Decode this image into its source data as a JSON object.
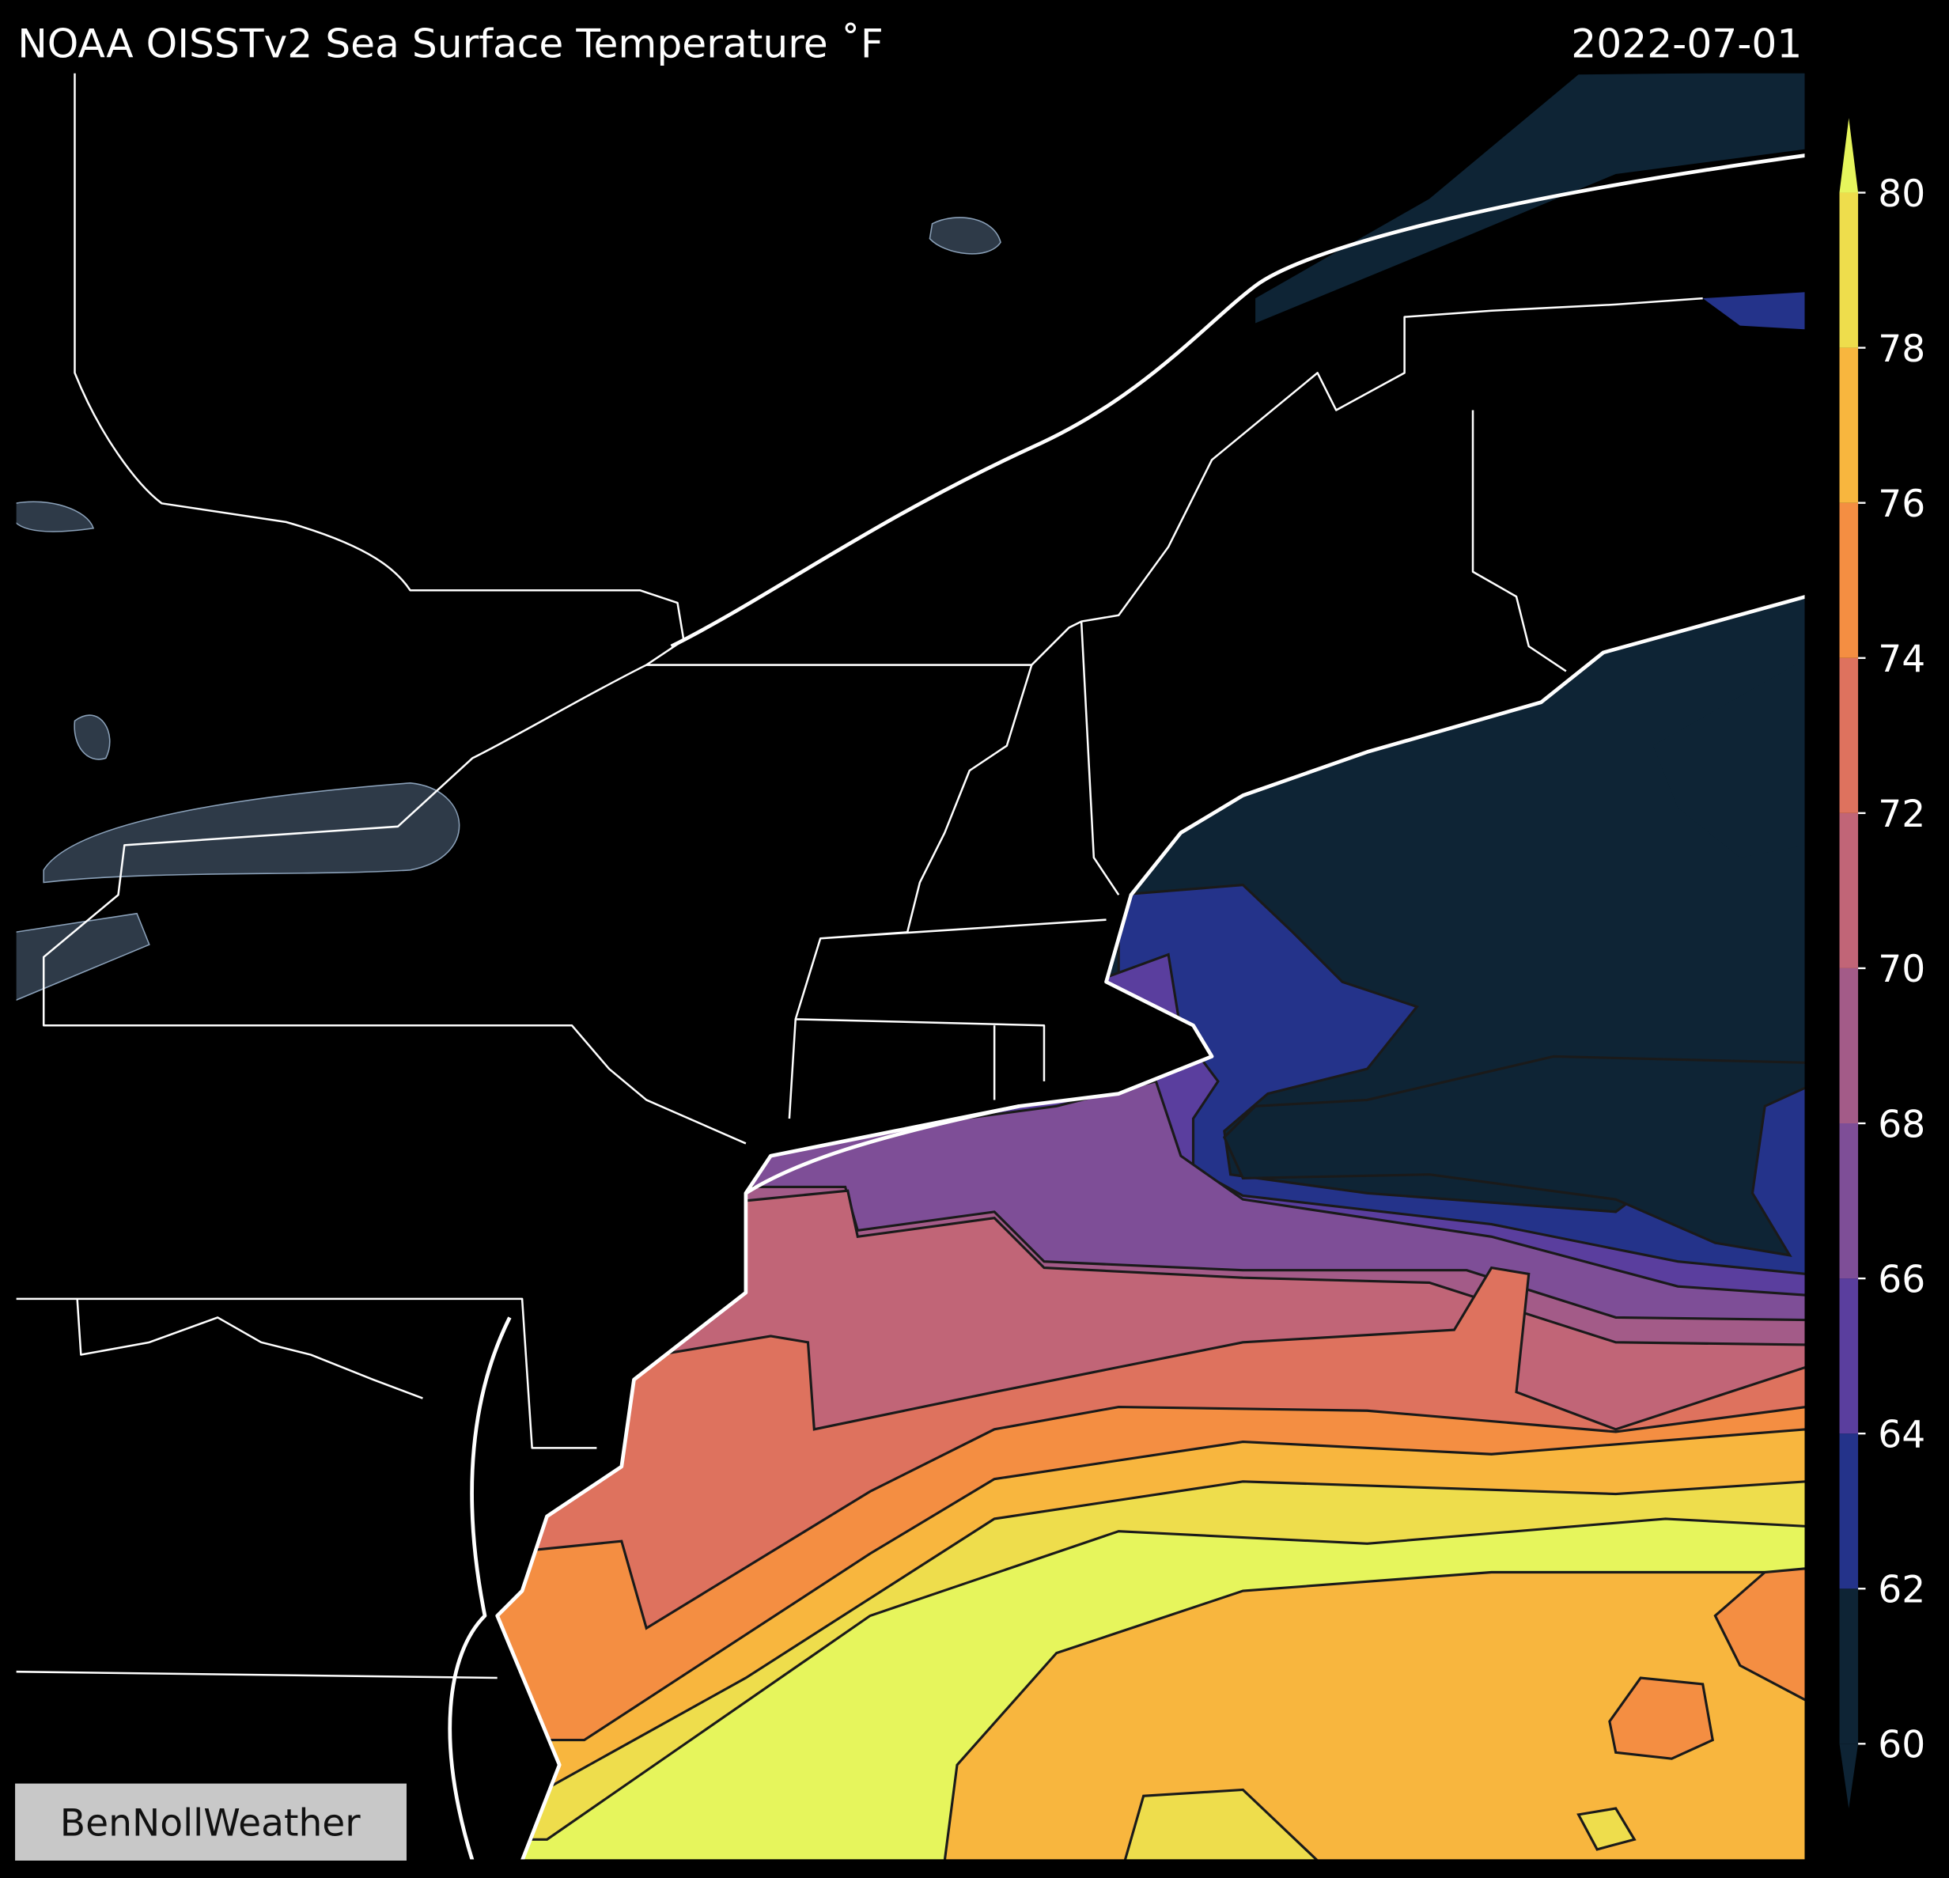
{
  "title": "NOAA OISSTv2 Sea Surface Temperature ˚F",
  "date": "2022-07-01",
  "watermark": "BenNollWeather",
  "colorbar": {
    "lim": [
      60,
      80
    ],
    "ticks": [
      60,
      62,
      64,
      66,
      68,
      70,
      72,
      74,
      76,
      78,
      80
    ],
    "band_colors": [
      "#0e2435",
      "#24338a",
      "#5a3e9e",
      "#7e4e97",
      "#a35b88",
      "#c16577",
      "#de725e",
      "#f48e42",
      "#f8b63e",
      "#eedd4c"
    ],
    "under_color": "#0e2435",
    "over_color": "#e6f55c"
  }
}
